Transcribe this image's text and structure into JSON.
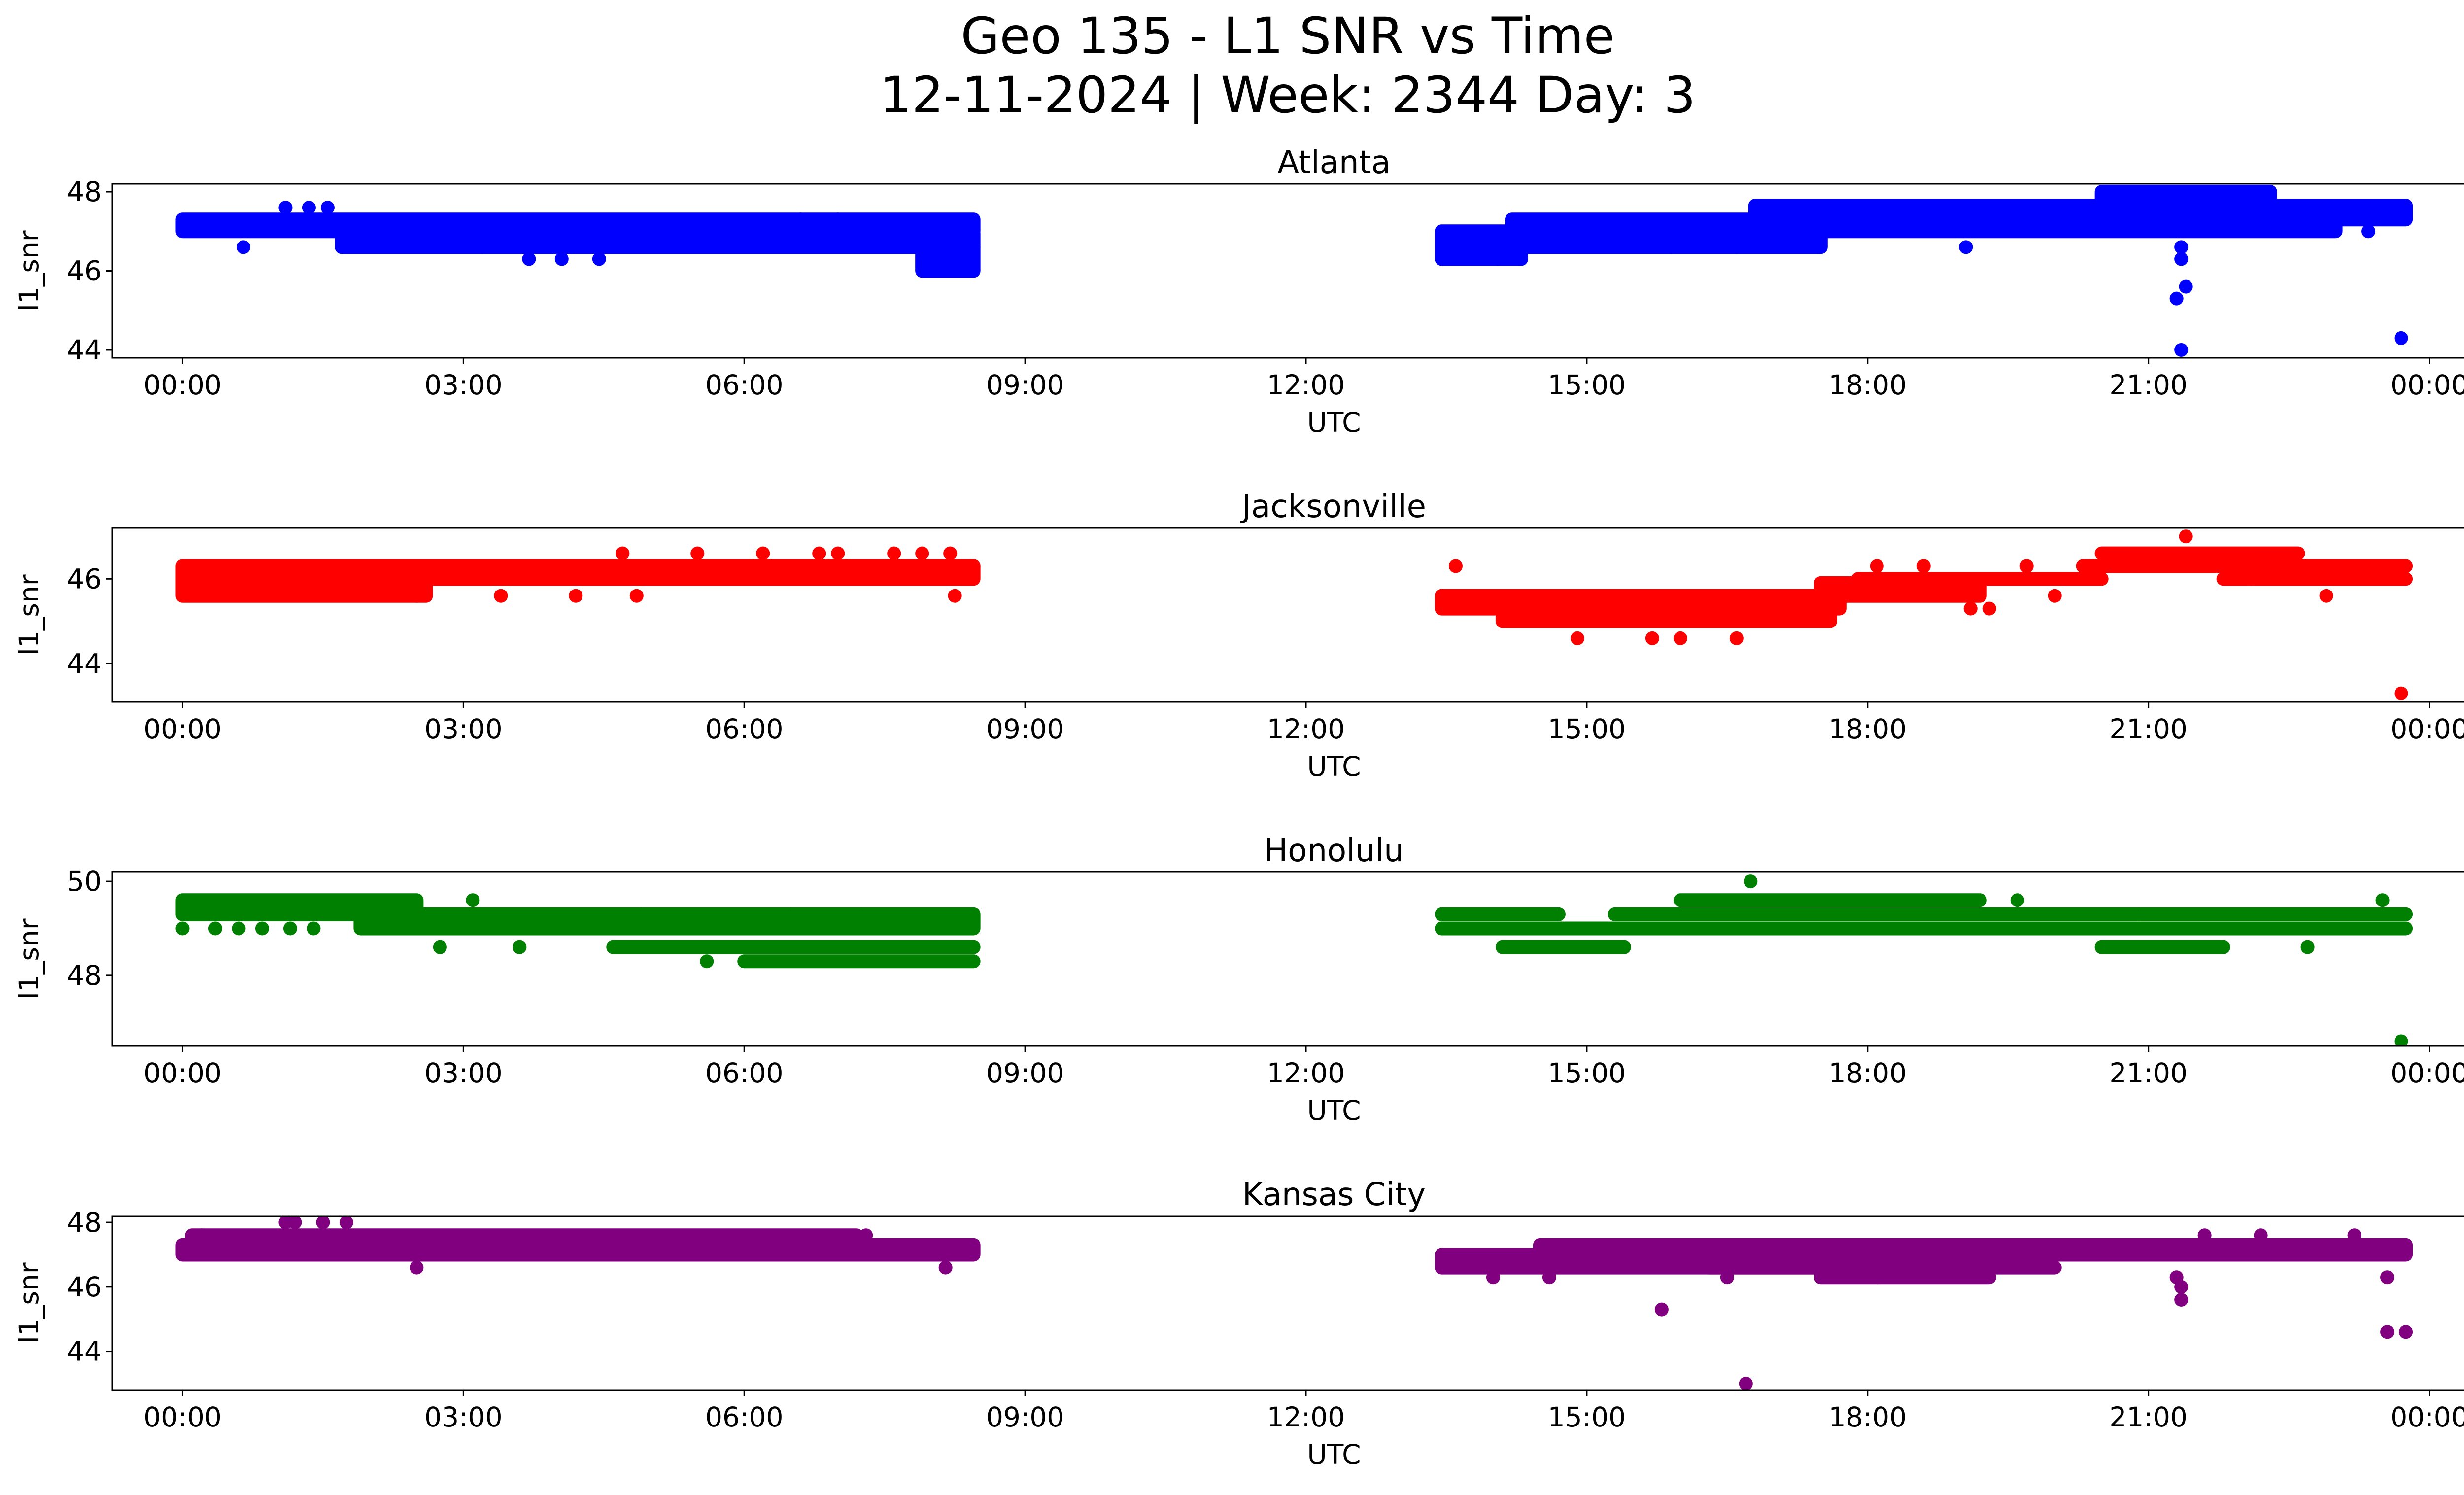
{
  "figure": {
    "title_line1": "Geo 135 - L1 SNR vs Time",
    "title_line2": "12-11-2024 | Week: 2344 Day: 3"
  },
  "chart_data": [
    {
      "type": "scatter",
      "title": "Atlanta",
      "xlabel": "UTC",
      "ylabel": "l1_snr",
      "color": "#0000ff",
      "xlim": [
        -0.75,
        25.35
      ],
      "ylim": [
        43.8,
        48.2
      ],
      "x_ticks": [
        "00:00",
        "03:00",
        "06:00",
        "09:00",
        "12:00",
        "15:00",
        "18:00",
        "21:00",
        "00:00"
      ],
      "y_ticks": [
        44,
        46,
        48
      ],
      "bands": [
        {
          "x": [
            0.0,
            8.45
          ],
          "y": [
            47.0,
            47.3
          ]
        },
        {
          "x": [
            1.7,
            8.45
          ],
          "y": [
            46.6,
            46.95
          ]
        },
        {
          "x": [
            7.9,
            8.45
          ],
          "y": [
            46.0,
            46.6
          ]
        },
        {
          "x": [
            13.45,
            14.3
          ],
          "y": [
            46.3,
            46.6
          ]
        },
        {
          "x": [
            13.45,
            17.5
          ],
          "y": [
            46.6,
            47.0
          ]
        },
        {
          "x": [
            14.2,
            23.0
          ],
          "y": [
            47.0,
            47.3
          ]
        },
        {
          "x": [
            16.8,
            23.75
          ],
          "y": [
            47.3,
            47.65
          ]
        },
        {
          "x": [
            20.5,
            22.3
          ],
          "y": [
            47.65,
            48.0
          ]
        }
      ],
      "points": [
        {
          "x": 0.65,
          "y": 46.6
        },
        {
          "x": 1.1,
          "y": 47.6
        },
        {
          "x": 1.35,
          "y": 47.6
        },
        {
          "x": 1.55,
          "y": 47.6
        },
        {
          "x": 3.2,
          "y": 46.6
        },
        {
          "x": 3.7,
          "y": 46.3
        },
        {
          "x": 4.05,
          "y": 46.3
        },
        {
          "x": 4.45,
          "y": 46.3
        },
        {
          "x": 6.6,
          "y": 47.3
        },
        {
          "x": 7.0,
          "y": 47.3
        },
        {
          "x": 14.05,
          "y": 46.3
        },
        {
          "x": 15.9,
          "y": 46.6
        },
        {
          "x": 16.6,
          "y": 46.6
        },
        {
          "x": 19.05,
          "y": 46.6
        },
        {
          "x": 19.4,
          "y": 47.6
        },
        {
          "x": 22.3,
          "y": 48.0
        },
        {
          "x": 21.35,
          "y": 46.6
        },
        {
          "x": 21.35,
          "y": 46.3
        },
        {
          "x": 21.4,
          "y": 45.6
        },
        {
          "x": 21.3,
          "y": 45.3
        },
        {
          "x": 21.35,
          "y": 44.0
        },
        {
          "x": 23.35,
          "y": 47.0
        },
        {
          "x": 23.7,
          "y": 44.3
        }
      ]
    },
    {
      "type": "scatter",
      "title": "Jacksonville",
      "xlabel": "UTC",
      "ylabel": "l1_snr",
      "color": "#ff0000",
      "xlim": [
        -0.75,
        25.35
      ],
      "ylim": [
        43.1,
        47.2
      ],
      "x_ticks": [
        "00:00",
        "03:00",
        "06:00",
        "09:00",
        "12:00",
        "15:00",
        "18:00",
        "21:00",
        "00:00"
      ],
      "y_ticks": [
        44,
        46
      ],
      "bands": [
        {
          "x": [
            0.0,
            2.6
          ],
          "y": [
            45.6,
            46.0
          ]
        },
        {
          "x": [
            0.0,
            8.45
          ],
          "y": [
            46.0,
            46.3
          ]
        },
        {
          "x": [
            3.1,
            8.45
          ],
          "y": [
            46.3,
            46.3
          ]
        },
        {
          "x": [
            13.45,
            17.7
          ],
          "y": [
            45.3,
            45.6
          ]
        },
        {
          "x": [
            14.1,
            17.6
          ],
          "y": [
            45.0,
            45.3
          ]
        },
        {
          "x": [
            17.5,
            19.2
          ],
          "y": [
            45.6,
            45.9
          ]
        },
        {
          "x": [
            17.9,
            20.5
          ],
          "y": [
            46.0,
            46.0
          ]
        },
        {
          "x": [
            20.3,
            23.75
          ],
          "y": [
            46.3,
            46.3
          ]
        },
        {
          "x": [
            20.5,
            22.6
          ],
          "y": [
            46.6,
            46.6
          ]
        },
        {
          "x": [
            21.8,
            23.75
          ],
          "y": [
            46.0,
            46.0
          ]
        }
      ],
      "points": [
        {
          "x": 0.2,
          "y": 46.3
        },
        {
          "x": 0.9,
          "y": 46.3
        },
        {
          "x": 1.2,
          "y": 46.3
        },
        {
          "x": 1.5,
          "y": 46.3
        },
        {
          "x": 1.75,
          "y": 46.3
        },
        {
          "x": 2.5,
          "y": 45.6
        },
        {
          "x": 3.4,
          "y": 45.6
        },
        {
          "x": 4.2,
          "y": 45.6
        },
        {
          "x": 4.7,
          "y": 46.6
        },
        {
          "x": 4.85,
          "y": 45.6
        },
        {
          "x": 5.5,
          "y": 46.6
        },
        {
          "x": 6.2,
          "y": 46.6
        },
        {
          "x": 6.8,
          "y": 46.6
        },
        {
          "x": 7.0,
          "y": 46.6
        },
        {
          "x": 7.6,
          "y": 46.6
        },
        {
          "x": 7.9,
          "y": 46.6
        },
        {
          "x": 8.2,
          "y": 46.6
        },
        {
          "x": 8.25,
          "y": 45.6
        },
        {
          "x": 13.6,
          "y": 46.3
        },
        {
          "x": 14.9,
          "y": 44.6
        },
        {
          "x": 15.7,
          "y": 44.6
        },
        {
          "x": 16.0,
          "y": 44.6
        },
        {
          "x": 16.6,
          "y": 44.6
        },
        {
          "x": 18.1,
          "y": 46.3
        },
        {
          "x": 18.6,
          "y": 46.3
        },
        {
          "x": 19.1,
          "y": 45.3
        },
        {
          "x": 19.3,
          "y": 45.3
        },
        {
          "x": 19.7,
          "y": 46.3
        },
        {
          "x": 20.0,
          "y": 45.6
        },
        {
          "x": 21.4,
          "y": 47.0
        },
        {
          "x": 22.1,
          "y": 46.0
        },
        {
          "x": 22.9,
          "y": 45.6
        },
        {
          "x": 23.7,
          "y": 43.3
        }
      ]
    },
    {
      "type": "scatter",
      "title": "Honolulu",
      "xlabel": "UTC",
      "ylabel": "l1_snr",
      "color": "#008000",
      "xlim": [
        -0.75,
        25.35
      ],
      "ylim": [
        46.5,
        50.2
      ],
      "x_ticks": [
        "00:00",
        "03:00",
        "06:00",
        "09:00",
        "12:00",
        "15:00",
        "18:00",
        "21:00",
        "00:00"
      ],
      "y_ticks": [
        48,
        50
      ],
      "bands": [
        {
          "x": [
            0.0,
            2.5
          ],
          "y": [
            49.3,
            49.6
          ]
        },
        {
          "x": [
            1.9,
            8.45
          ],
          "y": [
            49.0,
            49.3
          ]
        },
        {
          "x": [
            4.6,
            8.45
          ],
          "y": [
            48.6,
            48.6
          ]
        },
        {
          "x": [
            6.0,
            8.45
          ],
          "y": [
            48.3,
            48.3
          ]
        },
        {
          "x": [
            13.45,
            23.75
          ],
          "y": [
            49.0,
            49.0
          ]
        },
        {
          "x": [
            13.45,
            14.7
          ],
          "y": [
            49.3,
            49.3
          ]
        },
        {
          "x": [
            14.1,
            15.4
          ],
          "y": [
            48.6,
            48.6
          ]
        },
        {
          "x": [
            15.3,
            23.75
          ],
          "y": [
            49.3,
            49.3
          ]
        },
        {
          "x": [
            16.0,
            19.2
          ],
          "y": [
            49.6,
            49.6
          ]
        },
        {
          "x": [
            20.5,
            21.8
          ],
          "y": [
            48.6,
            48.6
          ]
        }
      ],
      "points": [
        {
          "x": 0.0,
          "y": 49.0
        },
        {
          "x": 0.35,
          "y": 49.0
        },
        {
          "x": 0.6,
          "y": 49.0
        },
        {
          "x": 0.85,
          "y": 49.0
        },
        {
          "x": 1.15,
          "y": 49.0
        },
        {
          "x": 1.4,
          "y": 49.0
        },
        {
          "x": 2.75,
          "y": 48.6
        },
        {
          "x": 3.1,
          "y": 49.6
        },
        {
          "x": 3.6,
          "y": 48.6
        },
        {
          "x": 4.9,
          "y": 49.3
        },
        {
          "x": 5.6,
          "y": 48.3
        },
        {
          "x": 6.5,
          "y": 49.3
        },
        {
          "x": 7.25,
          "y": 49.3
        },
        {
          "x": 16.75,
          "y": 50.0
        },
        {
          "x": 17.3,
          "y": 49.0
        },
        {
          "x": 18.3,
          "y": 49.0
        },
        {
          "x": 18.8,
          "y": 49.0
        },
        {
          "x": 19.6,
          "y": 49.6
        },
        {
          "x": 20.9,
          "y": 49.3
        },
        {
          "x": 21.8,
          "y": 48.6
        },
        {
          "x": 22.7,
          "y": 48.6
        },
        {
          "x": 23.5,
          "y": 49.6
        },
        {
          "x": 23.7,
          "y": 46.6
        }
      ]
    },
    {
      "type": "scatter",
      "title": "Kansas City",
      "xlabel": "UTC",
      "ylabel": "l1_snr",
      "color": "#800080",
      "xlim": [
        -0.75,
        25.35
      ],
      "ylim": [
        42.8,
        48.2
      ],
      "x_ticks": [
        "00:00",
        "03:00",
        "06:00",
        "09:00",
        "12:00",
        "15:00",
        "18:00",
        "21:00",
        "00:00"
      ],
      "y_ticks": [
        44,
        46,
        48
      ],
      "bands": [
        {
          "x": [
            0.0,
            8.45
          ],
          "y": [
            47.0,
            47.3
          ]
        },
        {
          "x": [
            0.1,
            7.2
          ],
          "y": [
            47.3,
            47.6
          ]
        },
        {
          "x": [
            13.45,
            19.2
          ],
          "y": [
            46.6,
            47.0
          ]
        },
        {
          "x": [
            14.5,
            23.75
          ],
          "y": [
            47.0,
            47.3
          ]
        },
        {
          "x": [
            16.3,
            20.0
          ],
          "y": [
            46.6,
            46.6
          ]
        },
        {
          "x": [
            17.5,
            19.3
          ],
          "y": [
            46.3,
            46.3
          ]
        }
      ],
      "points": [
        {
          "x": 0.2,
          "y": 47.6
        },
        {
          "x": 1.1,
          "y": 48.0
        },
        {
          "x": 1.2,
          "y": 48.0
        },
        {
          "x": 1.5,
          "y": 48.0
        },
        {
          "x": 1.75,
          "y": 48.0
        },
        {
          "x": 1.3,
          "y": 47.0
        },
        {
          "x": 2.5,
          "y": 46.6
        },
        {
          "x": 3.8,
          "y": 47.0
        },
        {
          "x": 4.3,
          "y": 47.0
        },
        {
          "x": 5.0,
          "y": 47.0
        },
        {
          "x": 7.3,
          "y": 47.6
        },
        {
          "x": 8.15,
          "y": 46.6
        },
        {
          "x": 13.5,
          "y": 47.0
        },
        {
          "x": 14.0,
          "y": 46.3
        },
        {
          "x": 14.6,
          "y": 46.3
        },
        {
          "x": 15.8,
          "y": 45.3
        },
        {
          "x": 16.7,
          "y": 43.0
        },
        {
          "x": 16.5,
          "y": 46.3
        },
        {
          "x": 18.1,
          "y": 46.3
        },
        {
          "x": 21.3,
          "y": 46.3
        },
        {
          "x": 21.35,
          "y": 46.0
        },
        {
          "x": 21.35,
          "y": 45.6
        },
        {
          "x": 21.6,
          "y": 47.6
        },
        {
          "x": 22.2,
          "y": 47.6
        },
        {
          "x": 23.2,
          "y": 47.6
        },
        {
          "x": 23.55,
          "y": 46.3
        },
        {
          "x": 23.55,
          "y": 44.6
        },
        {
          "x": 23.75,
          "y": 44.6
        }
      ]
    }
  ]
}
